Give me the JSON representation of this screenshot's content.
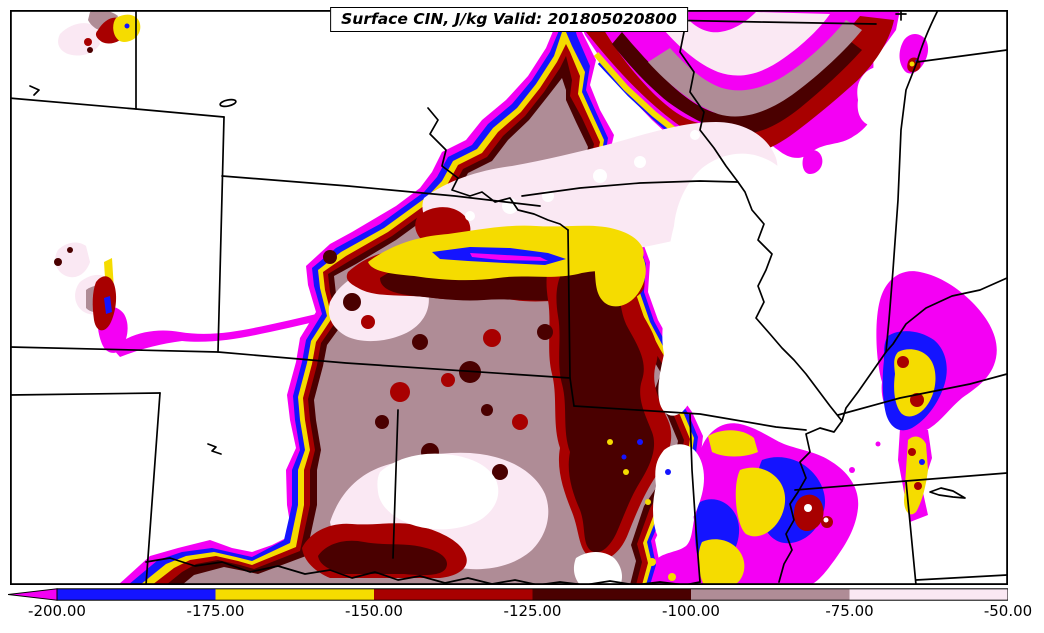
{
  "title": "Surface CIN, J/kg Valid: 201805020800",
  "chart_data": {
    "type": "heatmap",
    "subtype": "filled-contour-weather-map",
    "variable": "Surface CIN",
    "units": "J/kg",
    "valid_time": "201805020800",
    "region": "Central United States with state borders",
    "colorbar": {
      "orientation": "horizontal",
      "levels": [
        -200,
        -175,
        -150,
        -125,
        -100,
        -75,
        -50
      ],
      "tick_labels": [
        "-200.00",
        "-175.00",
        "-150.00",
        "-125.00",
        "-100.00",
        "-75.00",
        "-50.00"
      ],
      "segment_colors": [
        "#1414FF",
        "#F5DC00",
        "#A80000",
        "#4A0000",
        "#AF8C96",
        "#FAE8F3"
      ],
      "under_color": "#F400F4",
      "extend": "min"
    },
    "legend_position": "bottom",
    "grid": false
  },
  "colors": {
    "magenta": "#F400F4",
    "blue": "#1414FF",
    "yellow": "#F5DC00",
    "darkred": "#A80000",
    "maroon": "#4A0000",
    "mauve": "#AF8C96",
    "palepink": "#FAE8F3",
    "white": "#FFFFFF",
    "line": "#000000"
  }
}
